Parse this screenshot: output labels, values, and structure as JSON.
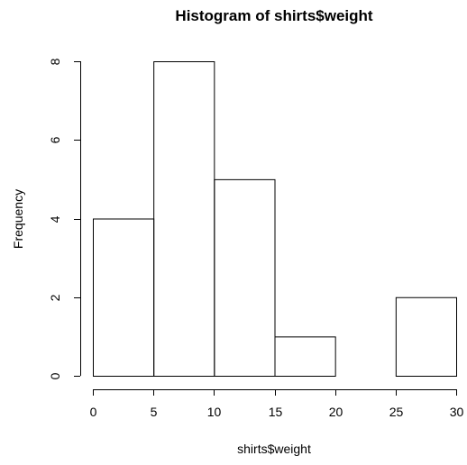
{
  "chart_data": {
    "type": "bar",
    "title": "Histogram of shirts$weight",
    "xlabel": "shirts$weight",
    "ylabel": "Frequency",
    "bins": [
      {
        "from": 0,
        "to": 5,
        "count": 4
      },
      {
        "from": 5,
        "to": 10,
        "count": 8
      },
      {
        "from": 10,
        "to": 15,
        "count": 5
      },
      {
        "from": 15,
        "to": 20,
        "count": 1
      },
      {
        "from": 20,
        "to": 25,
        "count": 0
      },
      {
        "from": 25,
        "to": 30,
        "count": 2
      }
    ],
    "x_ticks": [
      0,
      5,
      10,
      15,
      20,
      25,
      30
    ],
    "y_ticks": [
      0,
      2,
      4,
      6,
      8
    ],
    "xlim": [
      0,
      30
    ],
    "ylim": [
      0,
      8
    ],
    "grid": false
  }
}
